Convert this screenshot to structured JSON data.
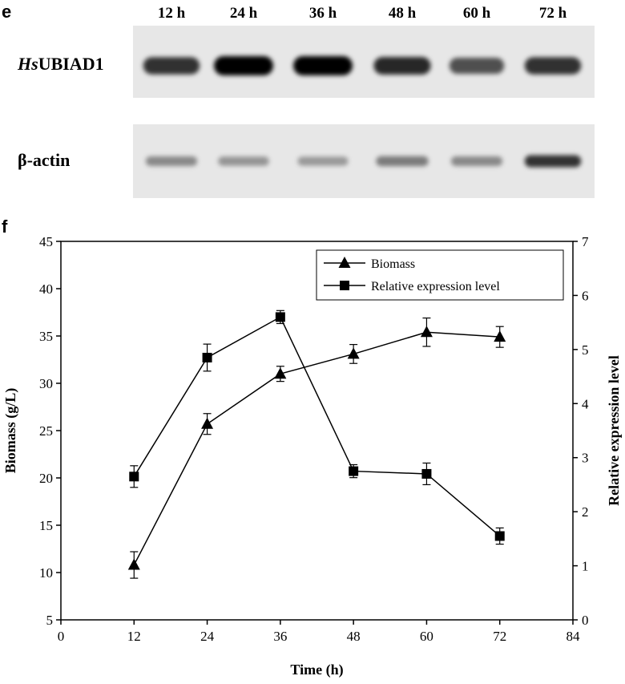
{
  "panel_e": {
    "letter": "e",
    "lanes": [
      "12 h",
      "24 h",
      "36 h",
      "48 h",
      "60 h",
      "72 h"
    ],
    "blots": [
      {
        "label_prefix": "Hs",
        "label_rest": "UBIAD1",
        "intensity": [
          0.75,
          1.0,
          1.0,
          0.8,
          0.6,
          0.75
        ]
      },
      {
        "label": "β-actin",
        "intensity": [
          0.3,
          0.25,
          0.22,
          0.38,
          0.3,
          0.75
        ]
      }
    ]
  },
  "panel_f": {
    "letter": "f"
  },
  "chart_data": {
    "type": "line",
    "xlabel": "Time (h)",
    "ylabel": "Biomass (g/L)",
    "y2label": "Relative expression level",
    "xlim": [
      0,
      84
    ],
    "ylim": [
      5,
      45
    ],
    "y2lim": [
      0,
      7
    ],
    "xticks": [
      "0",
      "12",
      "24",
      "36",
      "48",
      "60",
      "72",
      "84"
    ],
    "yticks": [
      "5",
      "10",
      "15",
      "20",
      "25",
      "30",
      "35",
      "40",
      "45"
    ],
    "y2ticks": [
      "0",
      "1",
      "2",
      "3",
      "4",
      "5",
      "6",
      "7"
    ],
    "legend_position": "top-right",
    "x": [
      12,
      24,
      36,
      48,
      60,
      72
    ],
    "series": [
      {
        "name": "Biomass",
        "axis": "left",
        "marker": "triangle",
        "values": [
          10.8,
          25.7,
          31.0,
          33.1,
          35.4,
          34.9
        ],
        "errors": [
          1.4,
          1.1,
          0.8,
          1.0,
          1.5,
          1.1
        ]
      },
      {
        "name": "Relative expression level",
        "axis": "right",
        "marker": "square",
        "values": [
          2.65,
          4.85,
          5.6,
          2.75,
          2.7,
          1.55
        ],
        "errors": [
          0.2,
          0.25,
          0.12,
          0.12,
          0.2,
          0.15
        ]
      }
    ]
  }
}
